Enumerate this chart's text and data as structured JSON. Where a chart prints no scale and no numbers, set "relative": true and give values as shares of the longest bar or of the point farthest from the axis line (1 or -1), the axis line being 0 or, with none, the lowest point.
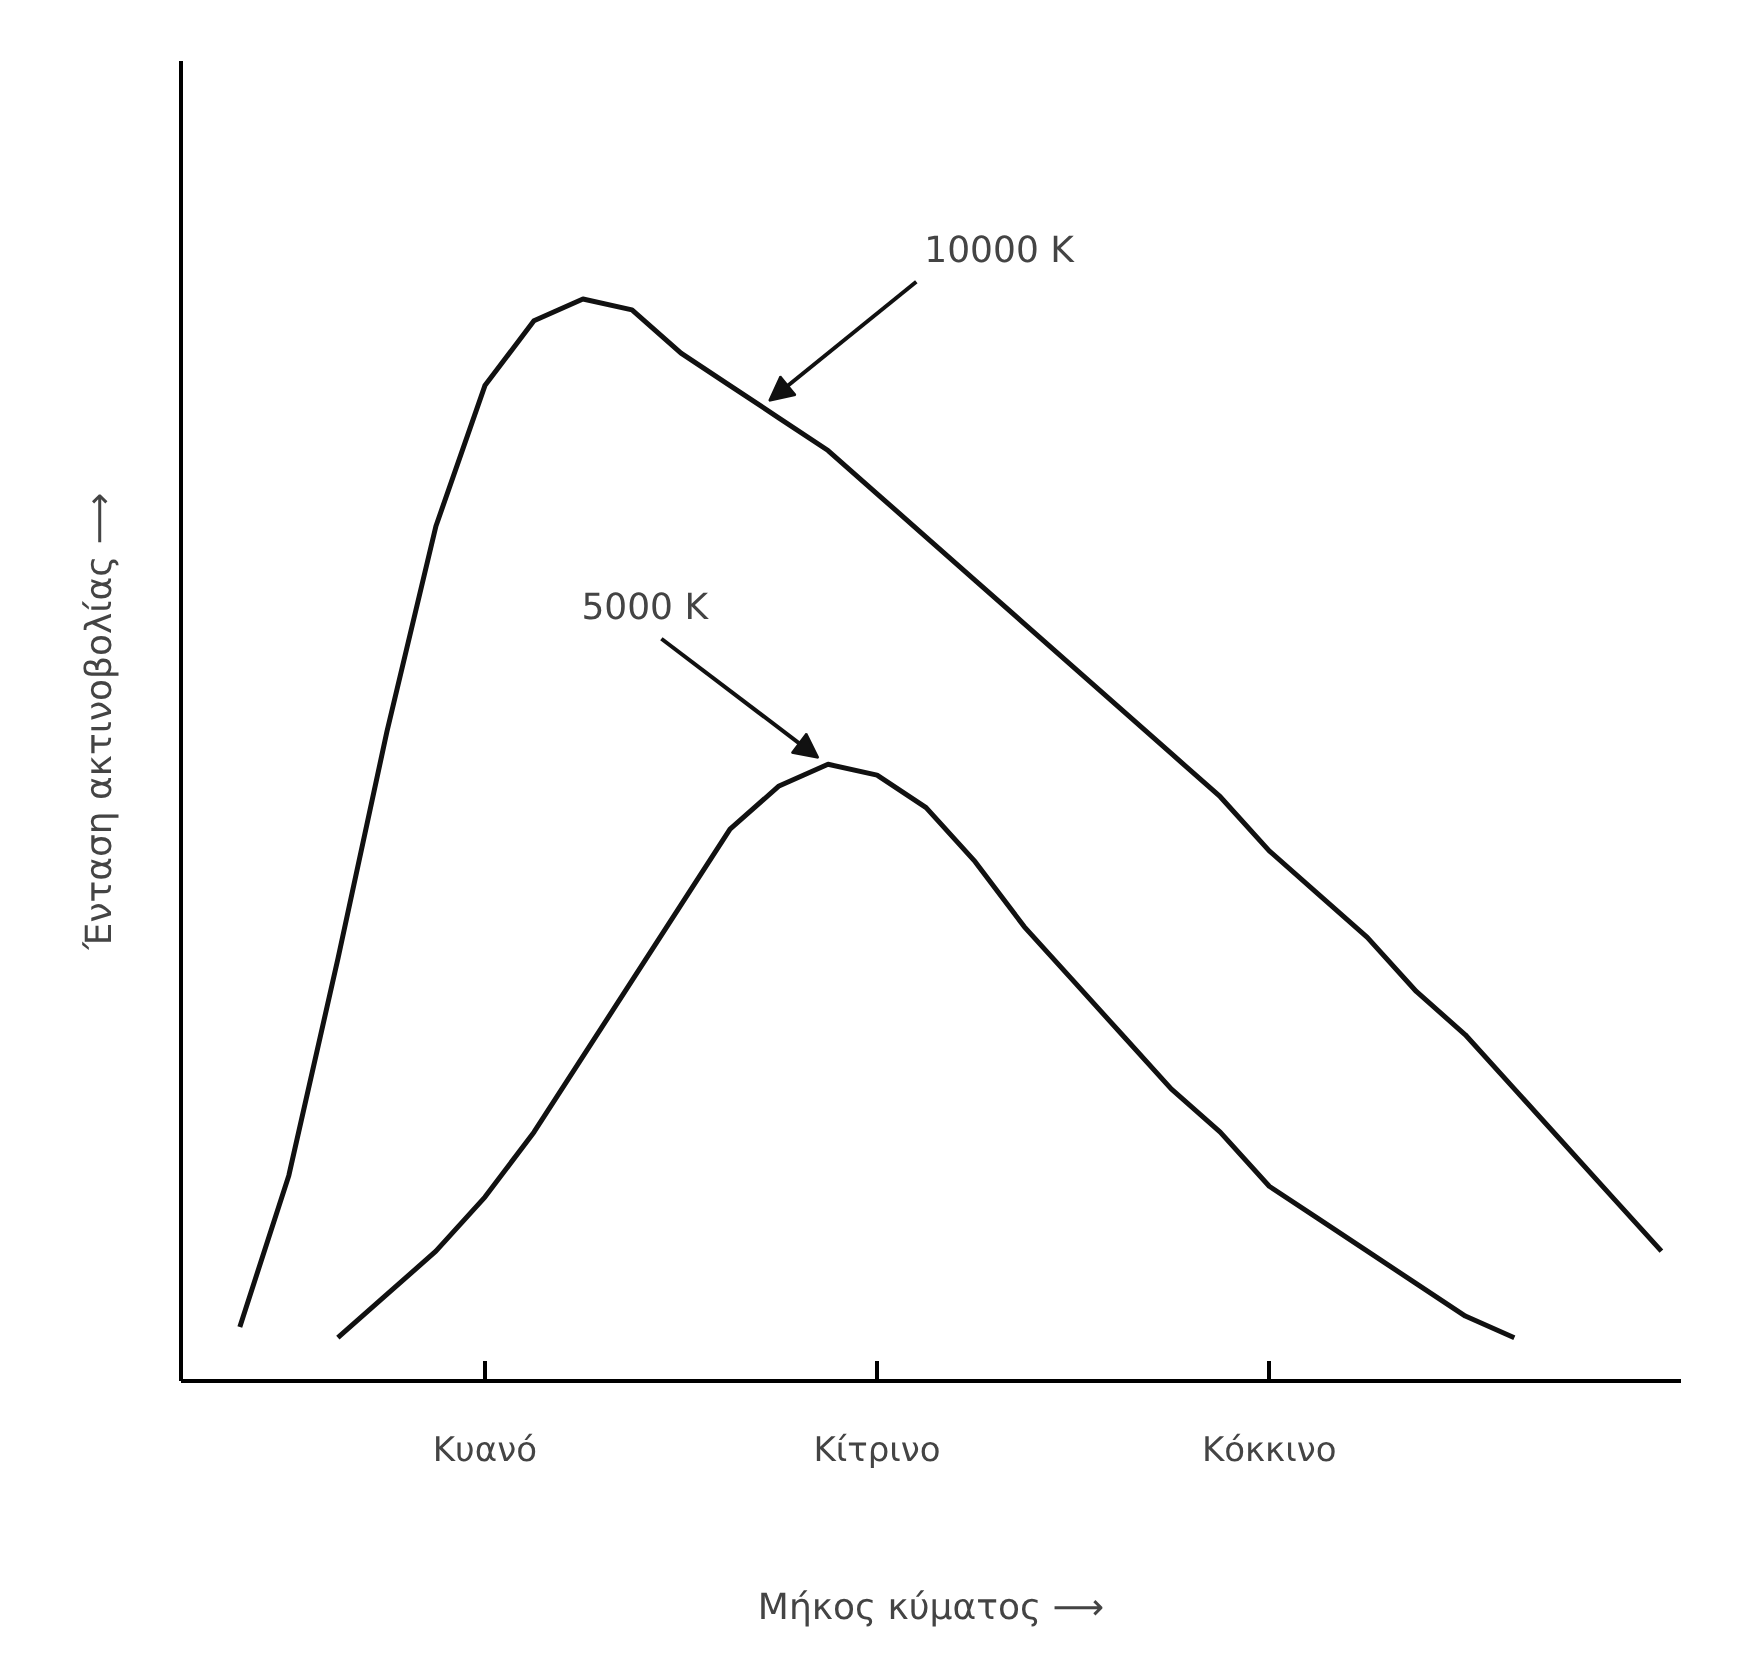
{
  "chart_data": {
    "type": "line",
    "relative": true,
    "xlabel": "Μήκος κύματος ⟶",
    "ylabel": "Ένταση ακτινοβολίας ⟶",
    "categories": [
      null,
      null,
      null,
      null,
      null,
      null,
      "Κυανό",
      null,
      null,
      null,
      null,
      null,
      null,
      null,
      "Κίτρινο",
      null,
      null,
      null,
      null,
      null,
      null,
      null,
      "Κόκκινο",
      null,
      null,
      null,
      null,
      null,
      null,
      null,
      null
    ],
    "series": [
      {
        "color": "#111111",
        "values": [
          null,
          0.05,
          0.19,
          0.39,
          0.6,
          0.79,
          0.92,
          0.98,
          1.0,
          0.99,
          0.95,
          0.92,
          0.89,
          0.86,
          0.82,
          0.78,
          0.74,
          0.7,
          0.66,
          0.62,
          0.58,
          0.54,
          0.49,
          0.45,
          0.41,
          0.36,
          0.32,
          0.27,
          0.22,
          0.17,
          0.12
        ]
      },
      {
        "color": "#111111",
        "values": [
          null,
          null,
          null,
          0.04,
          0.08,
          0.12,
          0.17,
          0.23,
          0.3,
          0.37,
          0.44,
          0.51,
          0.55,
          0.57,
          0.56,
          0.53,
          0.48,
          0.42,
          0.37,
          0.32,
          0.27,
          0.23,
          0.18,
          0.15,
          0.12,
          0.09,
          0.06,
          0.04,
          null,
          null,
          null
        ]
      }
    ],
    "annotations": [
      "10000 K",
      "5000 K"
    ],
    "grid": false,
    "marker": "none",
    "line_style": "solid"
  }
}
